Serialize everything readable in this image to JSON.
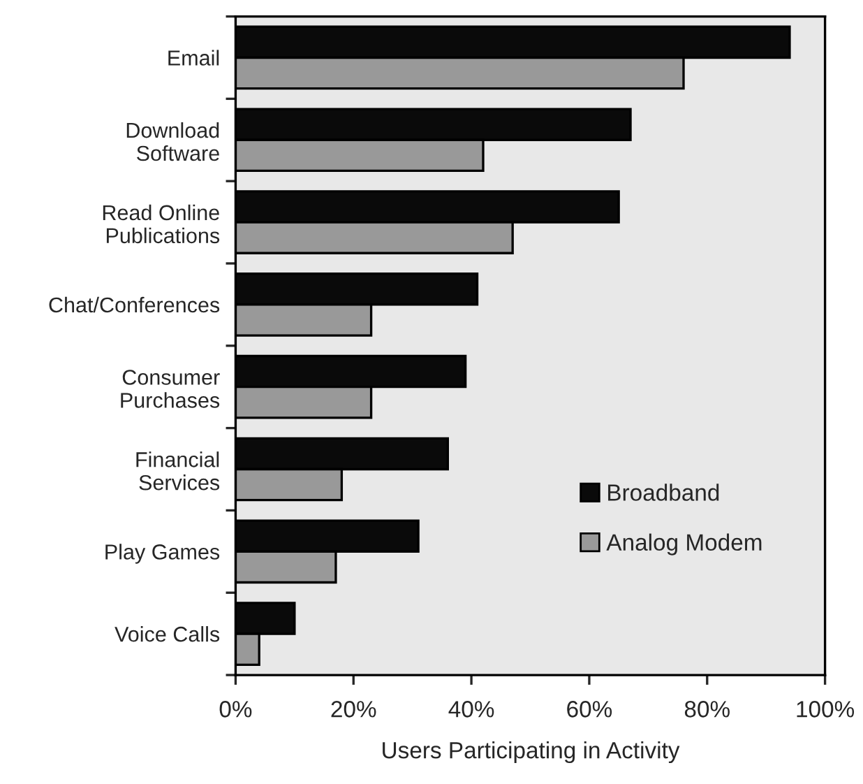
{
  "chart_data": {
    "type": "bar",
    "orientation": "horizontal",
    "xlabel": "Users Participating in Activity",
    "categories": [
      "Email",
      "Download\nSoftware",
      "Read Online\nPublications",
      "Chat/Conferences",
      "Consumer\nPurchases",
      "Financial\nServices",
      "Play Games",
      "Voice Calls"
    ],
    "series": [
      {
        "name": "Broadband",
        "color": "#0a0a0a",
        "values": [
          94,
          67,
          65,
          41,
          39,
          36,
          31,
          10
        ]
      },
      {
        "name": "Analog Modem",
        "color": "#999999",
        "values": [
          76,
          42,
          47,
          23,
          23,
          18,
          17,
          4
        ]
      }
    ],
    "xlim": [
      0,
      100
    ],
    "xticks": [
      {
        "value": 0,
        "label": "0%"
      },
      {
        "value": 20,
        "label": "20%"
      },
      {
        "value": 40,
        "label": "40%"
      },
      {
        "value": 60,
        "label": "60%"
      },
      {
        "value": 80,
        "label": "80%"
      },
      {
        "value": 100,
        "label": "100%"
      }
    ],
    "grid": false,
    "legend": "lower right"
  }
}
